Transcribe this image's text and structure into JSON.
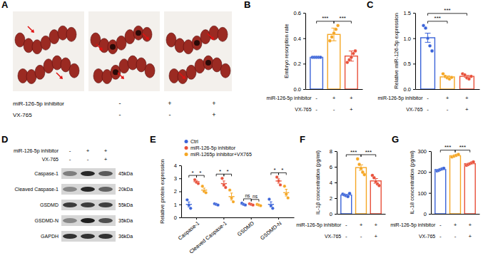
{
  "chart_data": [
    {
      "type": "bar",
      "title": "B",
      "y_label": "Embryo resorption rate",
      "categories": [
        null,
        null,
        null
      ],
      "values": [
        0.25,
        0.43,
        0.26
      ],
      "errors": [
        0,
        0.05,
        0.04
      ],
      "points": [
        [
          0.25,
          0.25,
          0.25,
          0.25,
          0.25
        ],
        [
          0.38,
          0.41,
          0.44,
          0.47,
          0.5
        ],
        [
          0.21,
          0.23,
          0.25,
          0.28,
          0.3
        ]
      ],
      "colors": [
        "#3a63d8",
        "#f5a623",
        "#e8503a"
      ],
      "ylim": [
        0,
        0.6
      ],
      "yticks": [
        {
          "value": 0,
          "label": "0.0"
        },
        0.2,
        0.4,
        0.6
      ],
      "treatments": [
        {
          "label": "miR-126-5p inhibitor",
          "signs": [
            "-",
            "+",
            "+"
          ]
        },
        {
          "label": "VX-765",
          "signs": [
            "-",
            "-",
            "+"
          ]
        }
      ],
      "significance": [
        {
          "from": 0,
          "to": 1,
          "label": "***"
        },
        {
          "from": 1,
          "to": 2,
          "label": "***"
        }
      ]
    },
    {
      "type": "bar",
      "title": "C",
      "y_label": "Relative miR-126-5p expression",
      "categories": [
        null,
        null,
        null
      ],
      "values": [
        1.01,
        0.24,
        0.25
      ],
      "errors": [
        0.09,
        0.02,
        0.02
      ],
      "points": [
        [
          1.25,
          1.2,
          1.0,
          0.85,
          0.75
        ],
        [
          0.3,
          0.25,
          0.22,
          0.2,
          0.23
        ],
        [
          0.3,
          0.28,
          0.22,
          0.2,
          0.25
        ]
      ],
      "colors": [
        "#3a63d8",
        "#f5a623",
        "#e8503a"
      ],
      "ylim": [
        0,
        1.5
      ],
      "yticks": [
        {
          "value": 0,
          "label": "0.0"
        },
        0.5,
        {
          "value": 1,
          "label": "1.0"
        },
        1.5
      ],
      "treatments": [
        {
          "label": "miR-126-5p inhibitor",
          "signs": [
            "-",
            "+",
            "+"
          ]
        },
        {
          "label": "VX-765",
          "signs": [
            "-",
            "-",
            "+"
          ]
        }
      ],
      "significance": [
        {
          "from": 0,
          "to": 1,
          "label": "***"
        },
        {
          "from": 0,
          "to": 2,
          "label": "***"
        }
      ]
    },
    {
      "type": "dot",
      "title": "E",
      "y_label": "Relative protein expression",
      "categories": [
        "Caspase-1",
        "Cleaved Caspase-1",
        "GSDMD",
        "GSDMD-N"
      ],
      "series": [
        {
          "name": "Ctrl",
          "color": "#3a63d8",
          "values": [
            1.0,
            1.0,
            1.0,
            1.0
          ],
          "errors": [
            0.19,
            0.03,
            0.04,
            0.2
          ],
          "points": [
            [
              1.35,
              0.95,
              0.7
            ],
            [
              1.05,
              1.0,
              0.95
            ],
            [
              1.1,
              1.0,
              0.95
            ],
            [
              1.4,
              0.9,
              0.7
            ]
          ]
        },
        {
          "name": "miR-126-5p inhibitor",
          "color": "#e8503a",
          "values": [
            2.75,
            2.6,
            1.0,
            2.8
          ],
          "errors": [
            0.09,
            0.2,
            0.03,
            0.17
          ],
          "points": [
            [
              2.9,
              2.7,
              2.6
            ],
            [
              3.0,
              2.5,
              2.3
            ],
            [
              1.05,
              1.0,
              0.95
            ],
            [
              3.1,
              2.8,
              2.5
            ]
          ]
        },
        {
          "name": "miR-1265p inhibitor+VX765",
          "color": "#f5a623",
          "values": [
            2.1,
            1.6,
            0.95,
            1.9
          ],
          "errors": [
            0.15,
            0.27,
            0.03,
            0.26
          ],
          "points": [
            [
              2.4,
              2.0,
              1.9
            ],
            [
              2.1,
              1.5,
              1.2
            ],
            [
              1.0,
              0.95,
              0.9
            ],
            [
              2.4,
              1.8,
              1.5
            ]
          ]
        }
      ],
      "ylim": [
        0,
        4
      ],
      "yticks": [
        0,
        1,
        2,
        3,
        4
      ],
      "legend": "top-left",
      "significance": [
        {
          "category": 0,
          "from": 0,
          "to": 1,
          "label": "*"
        },
        {
          "category": 0,
          "from": 1,
          "to": 2,
          "label": "*"
        },
        {
          "category": 1,
          "from": 0,
          "to": 1,
          "label": "*"
        },
        {
          "category": 1,
          "from": 1,
          "to": 2,
          "label": "*"
        },
        {
          "category": 2,
          "from": 0,
          "to": 1,
          "label": "ns"
        },
        {
          "category": 2,
          "from": 1,
          "to": 2,
          "label": "ns"
        },
        {
          "category": 3,
          "from": 0,
          "to": 1,
          "label": "*"
        },
        {
          "category": 3,
          "from": 1,
          "to": 2,
          "label": "*"
        }
      ]
    },
    {
      "type": "bar",
      "title": "F",
      "y_label": "IL-1β concentration (pg/ml)",
      "categories": [
        null,
        null,
        null
      ],
      "values": [
        2.4,
        5.9,
        4.2
      ],
      "errors": [
        0.1,
        0.35,
        0.3
      ],
      "points": [
        [
          2.5,
          2.4,
          2.3,
          2.2,
          2.6
        ],
        [
          7.0,
          6.3,
          5.8,
          5.3,
          5.0
        ],
        [
          4.9,
          4.6,
          4.1,
          3.8,
          3.6
        ]
      ],
      "colors": [
        "#3a63d8",
        "#f5a623",
        "#e8503a"
      ],
      "ylim": [
        0,
        8
      ],
      "yticks": [
        0,
        2,
        4,
        6,
        8
      ],
      "treatments": [
        {
          "label": "miR-126-5p inhibitor",
          "signs": [
            "-",
            "+",
            "+"
          ]
        },
        {
          "label": "VX-765",
          "signs": [
            "-",
            "-",
            "+"
          ]
        }
      ],
      "significance": [
        {
          "from": 0,
          "to": 1,
          "label": "***"
        },
        {
          "from": 1,
          "to": 2,
          "label": "***"
        }
      ]
    },
    {
      "type": "bar",
      "title": "G",
      "y_label": "IL-18 concentration (pg/ml)",
      "categories": [
        null,
        null,
        null
      ],
      "values": [
        212,
        278,
        240
      ],
      "errors": [
        2.5,
        4,
        3
      ],
      "points": [
        [
          205,
          208,
          212,
          215,
          218
        ],
        [
          272,
          276,
          280,
          284
        ],
        [
          232,
          236,
          240,
          244,
          248
        ]
      ],
      "colors": [
        "#3a63d8",
        "#f5a623",
        "#e8503a"
      ],
      "ylim": [
        0,
        300
      ],
      "yticks": [
        0,
        100,
        200,
        300
      ],
      "treatments": [
        {
          "label": "miR-126-5p inhibitor",
          "signs": [
            "-",
            "+",
            "+"
          ]
        },
        {
          "label": "VX-765",
          "signs": [
            "-",
            "-",
            "+"
          ]
        }
      ],
      "significance": [
        {
          "from": 0,
          "to": 1,
          "label": "***"
        },
        {
          "from": 1,
          "to": 2,
          "label": "***"
        }
      ]
    }
  ],
  "panel_a": {
    "label": "A",
    "treatments": [
      {
        "label": "miR-126-5p inhibitor",
        "signs": [
          "-",
          "+",
          "+"
        ]
      },
      {
        "label": "VX-765",
        "signs": [
          "-",
          "-",
          "+"
        ]
      }
    ]
  },
  "panel_d": {
    "label": "D",
    "treatments": [
      {
        "label": "miR-126-5p inhibitor",
        "signs": [
          "-",
          "+",
          "+"
        ]
      },
      {
        "label": "VX-765",
        "signs": [
          "-",
          "-",
          "+"
        ]
      }
    ],
    "bands": [
      {
        "name": "Caspase-1",
        "size": "45kDa"
      },
      {
        "name": "Cleaved Caspase-1",
        "size": "20kDa"
      },
      {
        "name": "GSDMD",
        "size": "55kDa"
      },
      {
        "name": "GSDMD-N",
        "size": "35kDa"
      },
      {
        "name": "GAPDH",
        "size": "36kDa"
      }
    ]
  }
}
